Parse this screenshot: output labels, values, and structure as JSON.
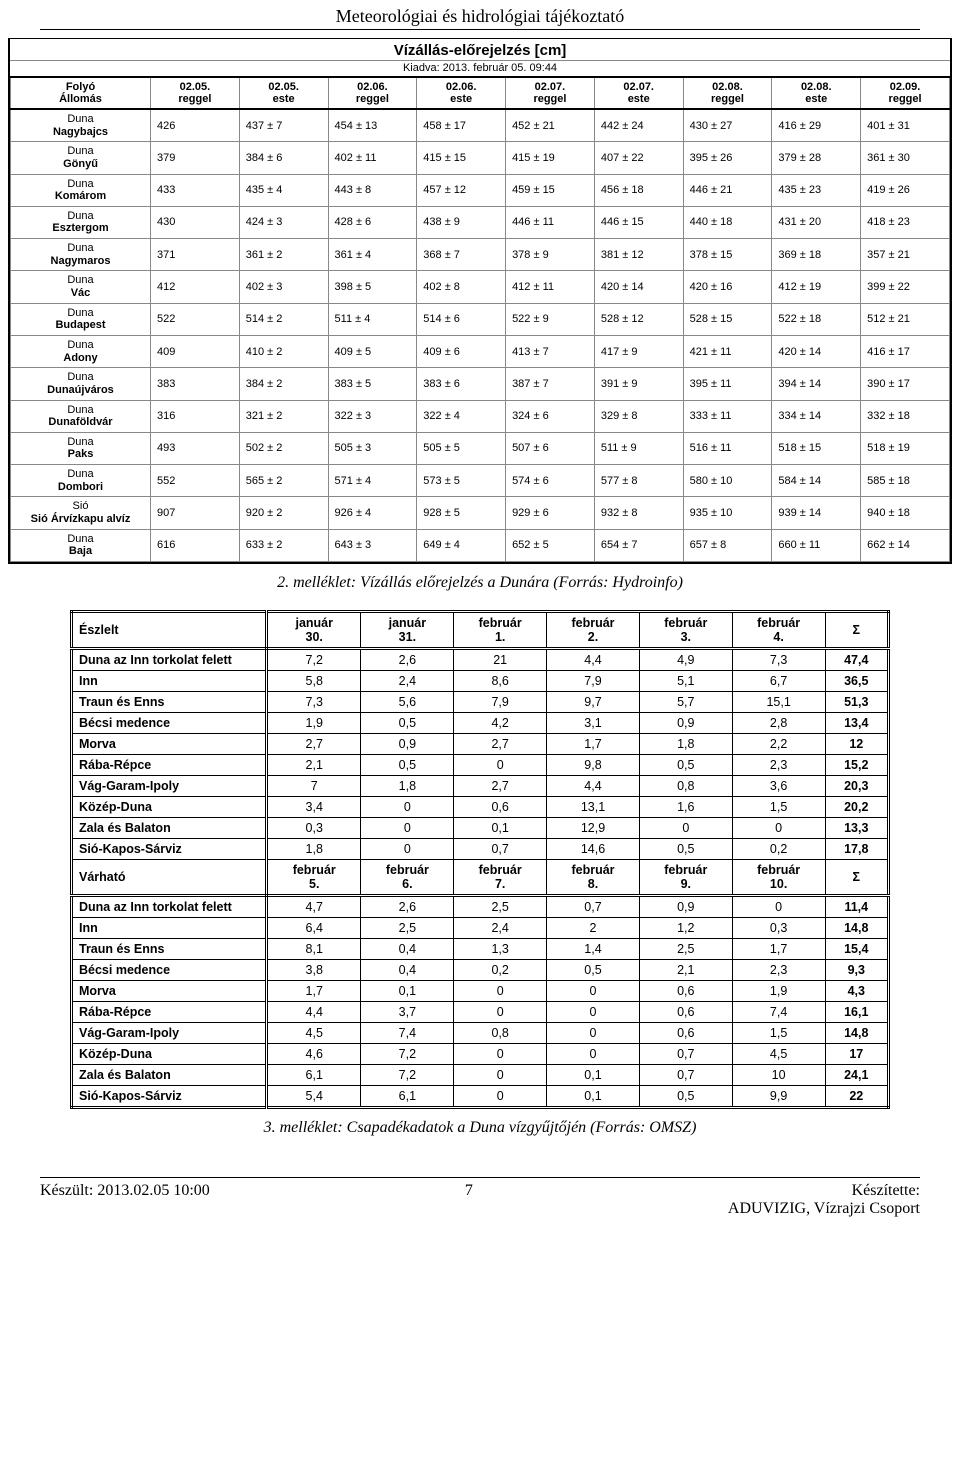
{
  "header": {
    "title": "Meteorológiai és hidrológiai tájékoztató"
  },
  "forecast": {
    "title": "Vízállás-előrejelzés [cm]",
    "subtitle": "Kiadva: 2013. február 05. 09:44",
    "station_head_top": "Folyó",
    "station_head_bottom": "Állomás",
    "col_heads": [
      {
        "top": "02.05.",
        "bot": "reggel"
      },
      {
        "top": "02.05.",
        "bot": "este"
      },
      {
        "top": "02.06.",
        "bot": "reggel"
      },
      {
        "top": "02.06.",
        "bot": "este"
      },
      {
        "top": "02.07.",
        "bot": "reggel"
      },
      {
        "top": "02.07.",
        "bot": "este"
      },
      {
        "top": "02.08.",
        "bot": "reggel"
      },
      {
        "top": "02.08.",
        "bot": "este"
      },
      {
        "top": "02.09.",
        "bot": "reggel"
      }
    ],
    "rows": [
      {
        "river": "Duna",
        "name": "Nagybajcs",
        "vals": [
          "426",
          "437 ± 7",
          "454 ± 13",
          "458 ± 17",
          "452 ± 21",
          "442 ± 24",
          "430 ± 27",
          "416 ± 29",
          "401 ± 31"
        ]
      },
      {
        "river": "Duna",
        "name": "Gönyű",
        "vals": [
          "379",
          "384 ± 6",
          "402 ± 11",
          "415 ± 15",
          "415 ± 19",
          "407 ± 22",
          "395 ± 26",
          "379 ± 28",
          "361 ± 30"
        ]
      },
      {
        "river": "Duna",
        "name": "Komárom",
        "vals": [
          "433",
          "435 ± 4",
          "443 ± 8",
          "457 ± 12",
          "459 ± 15",
          "456 ± 18",
          "446 ± 21",
          "435 ± 23",
          "419 ± 26"
        ]
      },
      {
        "river": "Duna",
        "name": "Esztergom",
        "vals": [
          "430",
          "424 ± 3",
          "428 ± 6",
          "438 ± 9",
          "446 ± 11",
          "446 ± 15",
          "440 ± 18",
          "431 ± 20",
          "418 ± 23"
        ]
      },
      {
        "river": "Duna",
        "name": "Nagymaros",
        "vals": [
          "371",
          "361 ± 2",
          "361 ± 4",
          "368 ± 7",
          "378 ± 9",
          "381 ± 12",
          "378 ± 15",
          "369 ± 18",
          "357 ± 21"
        ]
      },
      {
        "river": "Duna",
        "name": "Vác",
        "vals": [
          "412",
          "402 ± 3",
          "398 ± 5",
          "402 ± 8",
          "412 ± 11",
          "420 ± 14",
          "420 ± 16",
          "412 ± 19",
          "399 ± 22"
        ]
      },
      {
        "river": "Duna",
        "name": "Budapest",
        "vals": [
          "522",
          "514 ± 2",
          "511 ± 4",
          "514 ± 6",
          "522 ± 9",
          "528 ± 12",
          "528 ± 15",
          "522 ± 18",
          "512 ± 21"
        ]
      },
      {
        "river": "Duna",
        "name": "Adony",
        "vals": [
          "409",
          "410 ± 2",
          "409 ± 5",
          "409 ± 6",
          "413 ± 7",
          "417 ± 9",
          "421 ± 11",
          "420 ± 14",
          "416 ± 17"
        ]
      },
      {
        "river": "Duna",
        "name": "Dunaújváros",
        "vals": [
          "383",
          "384 ± 2",
          "383 ± 5",
          "383 ± 6",
          "387 ± 7",
          "391 ± 9",
          "395 ± 11",
          "394 ± 14",
          "390 ± 17"
        ]
      },
      {
        "river": "Duna",
        "name": "Dunaföldvár",
        "vals": [
          "316",
          "321 ± 2",
          "322 ± 3",
          "322 ± 4",
          "324 ± 6",
          "329 ± 8",
          "333 ± 11",
          "334 ± 14",
          "332 ± 18"
        ]
      },
      {
        "river": "Duna",
        "name": "Paks",
        "vals": [
          "493",
          "502 ± 2",
          "505 ± 3",
          "505 ± 5",
          "507 ± 6",
          "511 ± 9",
          "516 ± 11",
          "518 ± 15",
          "518 ± 19"
        ]
      },
      {
        "river": "Duna",
        "name": "Dombori",
        "vals": [
          "552",
          "565 ± 2",
          "571 ± 4",
          "573 ± 5",
          "574 ± 6",
          "577 ± 8",
          "580 ± 10",
          "584 ± 14",
          "585 ± 18"
        ]
      },
      {
        "river": "Sió",
        "name": "Sió Árvízkapu alvíz",
        "vals": [
          "907",
          "920 ± 2",
          "926 ± 4",
          "928 ± 5",
          "929 ± 6",
          "932 ± 8",
          "935 ± 10",
          "939 ± 14",
          "940 ± 18"
        ]
      },
      {
        "river": "Duna",
        "name": "Baja",
        "vals": [
          "616",
          "633 ± 2",
          "643 ± 3",
          "649 ± 4",
          "652 ± 5",
          "654 ± 7",
          "657 ± 8",
          "660 ± 11",
          "662 ± 14"
        ]
      }
    ]
  },
  "caption1": "2. melléklet: Vízállás előrejelzés a Dunára (Forrás: Hydroinfo)",
  "precip": {
    "row_labels": [
      "Duna az Inn torkolat felett",
      "Inn",
      "Traun és Enns",
      "Bécsi medence",
      "Morva",
      "Rába-Répce",
      "Vág-Garam-Ipoly",
      "Közép-Duna",
      "Zala és Balaton",
      "Sió-Kapos-Sárviz"
    ],
    "observed": {
      "corner": "Észlelt",
      "heads": [
        "január 30.",
        "január 31.",
        "február 1.",
        "február 2.",
        "február 3.",
        "február 4.",
        "Σ"
      ],
      "rows": [
        [
          "7,2",
          "2,6",
          "21",
          "4,4",
          "4,9",
          "7,3",
          "47,4"
        ],
        [
          "5,8",
          "2,4",
          "8,6",
          "7,9",
          "5,1",
          "6,7",
          "36,5"
        ],
        [
          "7,3",
          "5,6",
          "7,9",
          "9,7",
          "5,7",
          "15,1",
          "51,3"
        ],
        [
          "1,9",
          "0,5",
          "4,2",
          "3,1",
          "0,9",
          "2,8",
          "13,4"
        ],
        [
          "2,7",
          "0,9",
          "2,7",
          "1,7",
          "1,8",
          "2,2",
          "12"
        ],
        [
          "2,1",
          "0,5",
          "0",
          "9,8",
          "0,5",
          "2,3",
          "15,2"
        ],
        [
          "7",
          "1,8",
          "2,7",
          "4,4",
          "0,8",
          "3,6",
          "20,3"
        ],
        [
          "3,4",
          "0",
          "0,6",
          "13,1",
          "1,6",
          "1,5",
          "20,2"
        ],
        [
          "0,3",
          "0",
          "0,1",
          "12,9",
          "0",
          "0",
          "13,3"
        ],
        [
          "1,8",
          "0",
          "0,7",
          "14,6",
          "0,5",
          "0,2",
          "17,8"
        ]
      ]
    },
    "expected": {
      "corner": "Várható",
      "heads": [
        "február 5.",
        "február 6.",
        "február 7.",
        "február 8.",
        "február 9.",
        "február 10.",
        "Σ"
      ],
      "rows": [
        [
          "4,7",
          "2,6",
          "2,5",
          "0,7",
          "0,9",
          "0",
          "11,4"
        ],
        [
          "6,4",
          "2,5",
          "2,4",
          "2",
          "1,2",
          "0,3",
          "14,8"
        ],
        [
          "8,1",
          "0,4",
          "1,3",
          "1,4",
          "2,5",
          "1,7",
          "15,4"
        ],
        [
          "3,8",
          "0,4",
          "0,2",
          "0,5",
          "2,1",
          "2,3",
          "9,3"
        ],
        [
          "1,7",
          "0,1",
          "0",
          "0",
          "0,6",
          "1,9",
          "4,3"
        ],
        [
          "4,4",
          "3,7",
          "0",
          "0",
          "0,6",
          "7,4",
          "16,1"
        ],
        [
          "4,5",
          "7,4",
          "0,8",
          "0",
          "0,6",
          "1,5",
          "14,8"
        ],
        [
          "4,6",
          "7,2",
          "0",
          "0",
          "0,7",
          "4,5",
          "17"
        ],
        [
          "6,1",
          "7,2",
          "0",
          "0,1",
          "0,7",
          "10",
          "24,1"
        ],
        [
          "5,4",
          "6,1",
          "0",
          "0,1",
          "0,5",
          "9,9",
          "22"
        ]
      ]
    }
  },
  "caption2": "3. melléklet: Csapadékadatok a Duna vízgyűjtőjén (Forrás: OMSZ)",
  "footer": {
    "left": "Készült: 2013.02.05 10:00",
    "mid": "7",
    "right1": "Készítette:",
    "right2": "ADUVIZIG, Vízrajzi Csoport"
  }
}
